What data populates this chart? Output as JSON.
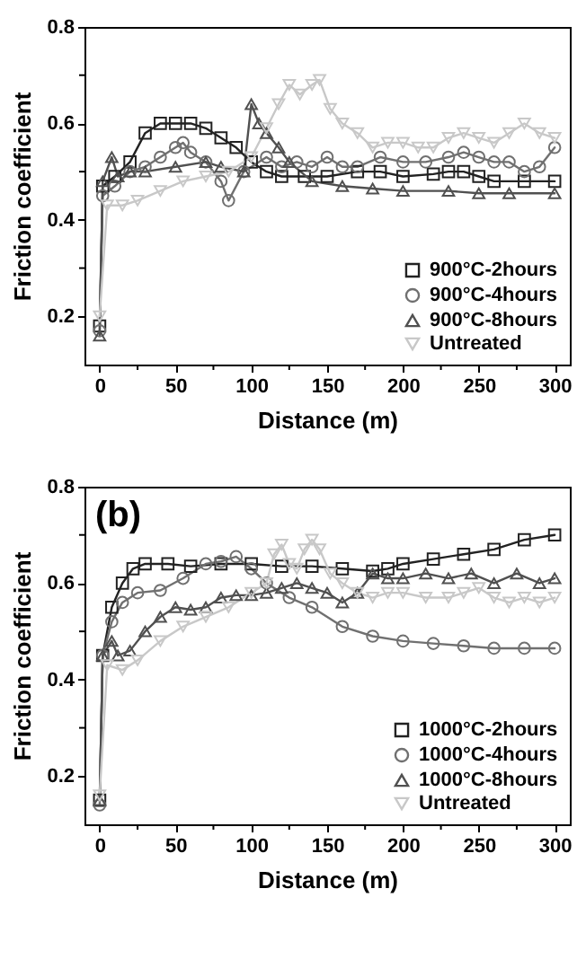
{
  "chart_data": [
    {
      "type": "line",
      "xlabel": "Distance (m)",
      "ylabel": "Friction coefficient",
      "xlim": [
        -10,
        310
      ],
      "ylim": [
        0.1,
        0.8
      ],
      "xticks": [
        0,
        {
          "value": 25,
          "label": null
        },
        50,
        {
          "value": 75,
          "label": null
        },
        100,
        {
          "value": 125,
          "label": null
        },
        150,
        {
          "value": 175,
          "label": null
        },
        200,
        {
          "value": 225,
          "label": null
        },
        250,
        {
          "value": 275,
          "label": null
        },
        300
      ],
      "yticks": [
        0.2,
        {
          "value": 0.3,
          "label": null
        },
        0.4,
        {
          "value": 0.5,
          "label": null
        },
        0.6,
        {
          "value": 0.7,
          "label": null
        },
        0.8
      ],
      "grid": false,
      "legend": "bottom right",
      "line_style": "solid",
      "series": [
        {
          "name": "900°C-2hours",
          "color": "#222222",
          "marker": "square",
          "x": [
            0,
            2,
            10,
            20,
            30,
            40,
            50,
            60,
            70,
            80,
            90,
            100,
            110,
            120,
            135,
            150,
            170,
            185,
            200,
            220,
            230,
            240,
            250,
            260,
            280,
            300
          ],
          "values": [
            0.18,
            0.47,
            0.49,
            0.52,
            0.58,
            0.6,
            0.6,
            0.6,
            0.59,
            0.57,
            0.55,
            0.52,
            0.5,
            0.49,
            0.49,
            0.49,
            0.5,
            0.5,
            0.49,
            0.495,
            0.5,
            0.5,
            0.49,
            0.48,
            0.48,
            0.48
          ]
        },
        {
          "name": "900°C-4hours",
          "color": "#707070",
          "marker": "circle",
          "x": [
            0,
            2,
            10,
            20,
            30,
            40,
            50,
            55,
            60,
            70,
            80,
            85,
            95,
            110,
            120,
            130,
            140,
            150,
            160,
            170,
            185,
            200,
            215,
            230,
            240,
            250,
            260,
            270,
            280,
            290,
            300
          ],
          "values": [
            0.17,
            0.45,
            0.47,
            0.5,
            0.51,
            0.53,
            0.55,
            0.56,
            0.54,
            0.52,
            0.48,
            0.44,
            0.5,
            0.53,
            0.51,
            0.52,
            0.51,
            0.53,
            0.51,
            0.51,
            0.53,
            0.52,
            0.52,
            0.53,
            0.54,
            0.53,
            0.52,
            0.52,
            0.5,
            0.51,
            0.55
          ]
        },
        {
          "name": "900°C-8hours",
          "color": "#505050",
          "marker": "triangle",
          "x": [
            0,
            2,
            8,
            12,
            20,
            30,
            50,
            70,
            80,
            95,
            100,
            105,
            110,
            118,
            125,
            140,
            160,
            180,
            200,
            230,
            250,
            270,
            300
          ],
          "values": [
            0.16,
            0.48,
            0.53,
            0.49,
            0.5,
            0.5,
            0.51,
            0.52,
            0.51,
            0.5,
            0.64,
            0.6,
            0.58,
            0.55,
            0.52,
            0.48,
            0.47,
            0.465,
            0.46,
            0.46,
            0.455,
            0.455,
            0.455
          ]
        },
        {
          "name": "Untreated",
          "color": "#c8c8c8",
          "marker": "triangle-down",
          "x": [
            0,
            5,
            15,
            25,
            40,
            55,
            70,
            85,
            100,
            110,
            118,
            125,
            132,
            140,
            145,
            152,
            160,
            170,
            180,
            190,
            200,
            210,
            220,
            230,
            240,
            250,
            260,
            270,
            280,
            290,
            300
          ],
          "values": [
            0.2,
            0.43,
            0.43,
            0.44,
            0.46,
            0.48,
            0.49,
            0.5,
            0.53,
            0.59,
            0.64,
            0.68,
            0.66,
            0.68,
            0.69,
            0.63,
            0.6,
            0.58,
            0.55,
            0.56,
            0.56,
            0.55,
            0.55,
            0.57,
            0.58,
            0.57,
            0.56,
            0.58,
            0.6,
            0.58,
            0.57
          ]
        }
      ]
    },
    {
      "type": "line",
      "xlabel": "Distance (m)",
      "ylabel": "Friction coefficient",
      "annotations": [
        "(b)"
      ],
      "xlim": [
        -10,
        310
      ],
      "ylim": [
        0.1,
        0.8
      ],
      "xticks": [
        0,
        {
          "value": 25,
          "label": null
        },
        50,
        {
          "value": 75,
          "label": null
        },
        100,
        {
          "value": 125,
          "label": null
        },
        150,
        {
          "value": 175,
          "label": null
        },
        200,
        {
          "value": 225,
          "label": null
        },
        250,
        {
          "value": 275,
          "label": null
        },
        300
      ],
      "yticks": [
        0.2,
        {
          "value": 0.3,
          "label": null
        },
        0.4,
        {
          "value": 0.5,
          "label": null
        },
        0.6,
        {
          "value": 0.7,
          "label": null
        },
        0.8
      ],
      "grid": false,
      "legend": "bottom right",
      "line_style": "solid",
      "series": [
        {
          "name": "1000°C-2hours",
          "color": "#222222",
          "marker": "square",
          "x": [
            0,
            2,
            8,
            15,
            22,
            30,
            45,
            60,
            80,
            100,
            120,
            140,
            160,
            180,
            190,
            200,
            220,
            240,
            260,
            280,
            300
          ],
          "values": [
            0.15,
            0.45,
            0.55,
            0.6,
            0.63,
            0.64,
            0.64,
            0.635,
            0.64,
            0.64,
            0.635,
            0.635,
            0.63,
            0.625,
            0.63,
            0.64,
            0.65,
            0.66,
            0.67,
            0.69,
            0.7
          ]
        },
        {
          "name": "1000°C-4hours",
          "color": "#707070",
          "marker": "circle",
          "x": [
            0,
            2,
            8,
            15,
            25,
            40,
            55,
            70,
            80,
            90,
            100,
            110,
            125,
            140,
            160,
            180,
            200,
            220,
            240,
            260,
            280,
            300
          ],
          "values": [
            0.14,
            0.45,
            0.52,
            0.56,
            0.58,
            0.585,
            0.61,
            0.64,
            0.645,
            0.655,
            0.63,
            0.6,
            0.57,
            0.55,
            0.51,
            0.49,
            0.48,
            0.475,
            0.47,
            0.465,
            0.465,
            0.465
          ]
        },
        {
          "name": "1000°C-8hours",
          "color": "#505050",
          "marker": "triangle",
          "x": [
            0,
            2,
            8,
            12,
            20,
            30,
            40,
            50,
            60,
            70,
            80,
            90,
            100,
            110,
            120,
            130,
            140,
            150,
            160,
            170,
            180,
            190,
            200,
            215,
            230,
            245,
            260,
            275,
            290,
            300
          ],
          "values": [
            0.15,
            0.45,
            0.48,
            0.45,
            0.46,
            0.5,
            0.53,
            0.55,
            0.545,
            0.55,
            0.57,
            0.575,
            0.575,
            0.58,
            0.59,
            0.6,
            0.59,
            0.58,
            0.56,
            0.58,
            0.62,
            0.61,
            0.61,
            0.62,
            0.61,
            0.62,
            0.6,
            0.62,
            0.6,
            0.61
          ]
        },
        {
          "name": "Untreated",
          "color": "#c8c8c8",
          "marker": "triangle-down",
          "x": [
            0,
            5,
            15,
            25,
            40,
            55,
            70,
            85,
            100,
            110,
            115,
            120,
            125,
            130,
            135,
            140,
            145,
            152,
            160,
            170,
            180,
            190,
            200,
            215,
            230,
            240,
            250,
            260,
            270,
            280,
            290,
            300
          ],
          "values": [
            0.16,
            0.43,
            0.42,
            0.44,
            0.48,
            0.51,
            0.53,
            0.55,
            0.58,
            0.6,
            0.66,
            0.68,
            0.64,
            0.63,
            0.67,
            0.69,
            0.67,
            0.62,
            0.6,
            0.58,
            0.57,
            0.58,
            0.58,
            0.57,
            0.57,
            0.58,
            0.59,
            0.57,
            0.56,
            0.57,
            0.56,
            0.57
          ]
        }
      ]
    }
  ]
}
